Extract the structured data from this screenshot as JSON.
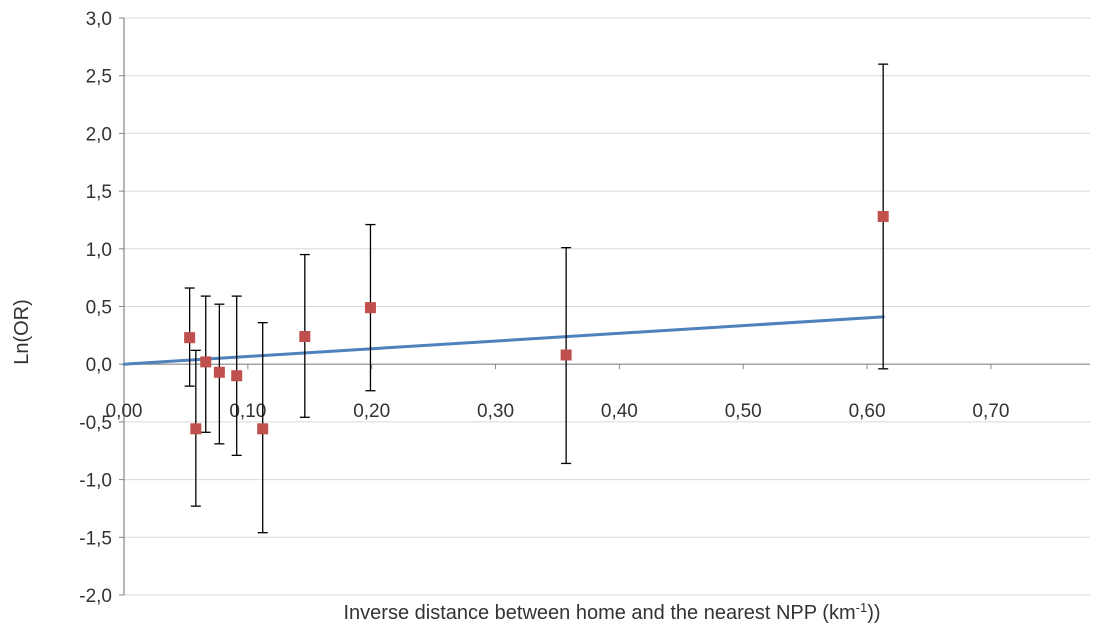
{
  "chart_data": {
    "type": "scatter",
    "title": "",
    "xlabel": "Inverse distance between home and  the nearest NPP (km",
    "xlabel_superscript": "-1",
    "xlabel_suffix": "))",
    "ylabel": "Ln(OR)",
    "xlim": [
      0,
      0.78
    ],
    "ylim": [
      -2.0,
      3.0
    ],
    "x_ticks": [
      0.0,
      0.1,
      0.2,
      0.3,
      0.4,
      0.5,
      0.6,
      0.7
    ],
    "x_tick_labels": [
      "0,00",
      "0,10",
      "0,20",
      "0,30",
      "0,40",
      "0,50",
      "0,60",
      "0,70"
    ],
    "y_ticks": [
      3.0,
      2.5,
      2.0,
      1.5,
      1.0,
      0.5,
      0.0,
      -0.5,
      -1.0,
      -1.5,
      -2.0
    ],
    "y_tick_labels": [
      "3,0",
      "2,5",
      "2,0",
      "1,5",
      "1,0",
      "0,5",
      "0,0",
      "-0,5",
      "-1,0",
      "-1,5",
      "-2,0"
    ],
    "grid": "horizontal",
    "legend": "none",
    "points": {
      "x": [
        0.053,
        0.058,
        0.066,
        0.077,
        0.091,
        0.112,
        0.146,
        0.199,
        0.357,
        0.613
      ],
      "y": [
        0.23,
        -0.56,
        0.02,
        -0.07,
        -0.1,
        -0.56,
        0.24,
        0.49,
        0.08,
        1.28
      ],
      "y_low": [
        -0.19,
        -1.23,
        -0.59,
        -0.69,
        -0.79,
        -1.46,
        -0.46,
        -0.23,
        -0.86,
        -0.04
      ],
      "y_high": [
        0.66,
        0.12,
        0.59,
        0.52,
        0.59,
        0.36,
        0.95,
        1.21,
        1.01,
        2.6
      ],
      "color": "#c0504d"
    },
    "trendline": {
      "x": [
        0.0,
        0.613
      ],
      "y": [
        0.0,
        0.41
      ],
      "color": "#4f81bd"
    },
    "gridline_color": "#d9d9d9",
    "axis_color": "#868686"
  }
}
